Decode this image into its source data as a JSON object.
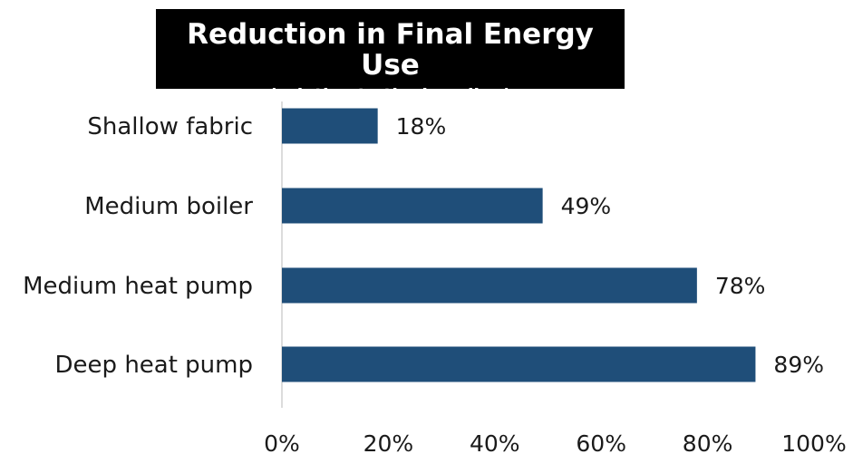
{
  "chart_data": {
    "type": "bar",
    "orientation": "horizontal",
    "title": "Reduction in Final Energy Use",
    "subtitle": "(relative to the baseline)",
    "categories": [
      "Shallow fabric",
      "Medium boiler",
      "Medium heat pump",
      "Deep heat pump"
    ],
    "values": [
      18,
      49,
      78,
      89
    ],
    "data_labels": [
      "18%",
      "49%",
      "78%",
      "89%"
    ],
    "xlim": [
      0,
      100
    ],
    "xticks": [
      0,
      20,
      40,
      60,
      80,
      100
    ],
    "xtick_labels": [
      "0%",
      "20%",
      "40%",
      "60%",
      "80%",
      "100%"
    ],
    "xlabel": "",
    "ylabel": "",
    "grid": false,
    "legend": "none",
    "bar_color": "#1f4e79"
  }
}
